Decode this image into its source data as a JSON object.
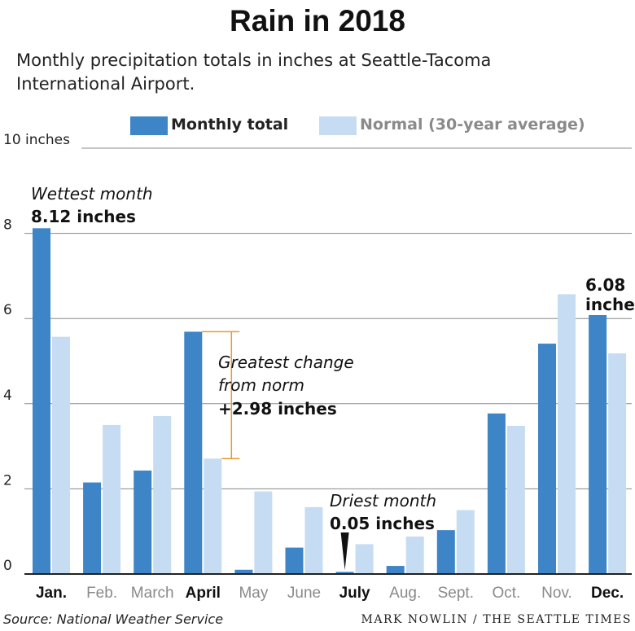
{
  "title": "Rain in 2018",
  "subtitle": "Monthly precipitation totals in inches at Seattle-Tacoma International Airport.",
  "colors": {
    "monthly": "#3d85c6",
    "normal": "#c6dcf2",
    "axis": "#222222",
    "grid": "#888888",
    "bracket": "#e69b2c",
    "muted": "#8a8a8a"
  },
  "legend": [
    {
      "label": "Monthly total",
      "color": "#3d85c6"
    },
    {
      "label": "Normal (30-year average)",
      "color": "#c6dcf2"
    }
  ],
  "chart_data": {
    "type": "bar",
    "categories": [
      "Jan.",
      "Feb.",
      "March",
      "April",
      "May",
      "June",
      "July",
      "Aug.",
      "Sept.",
      "Oct.",
      "Nov.",
      "Dec."
    ],
    "highlighted_categories": [
      "Jan.",
      "April",
      "July",
      "Dec."
    ],
    "series": [
      {
        "name": "Monthly total",
        "values": [
          8.12,
          2.15,
          2.43,
          5.69,
          0.1,
          0.62,
          0.05,
          0.19,
          1.03,
          3.77,
          5.41,
          6.08
        ]
      },
      {
        "name": "Normal (30-year average)",
        "values": [
          5.57,
          3.5,
          3.71,
          2.71,
          1.94,
          1.57,
          0.7,
          0.88,
          1.5,
          3.48,
          6.57,
          5.18
        ]
      }
    ],
    "ylim": [
      0,
      10
    ],
    "yticks": [
      "0",
      "2",
      "4",
      "6",
      "8",
      "10 inches"
    ],
    "grid": true,
    "legend_position": "top",
    "annotations": [
      {
        "category": "Jan.",
        "lines": [
          "Wettest month",
          "8.12 inches"
        ]
      },
      {
        "category": "April",
        "lines": [
          "Greatest change",
          "from norm",
          "+2.98 inches"
        ]
      },
      {
        "category": "July",
        "lines": [
          "Driest month",
          "0.05 inches"
        ]
      },
      {
        "category": "Dec.",
        "lines": [
          "6.08",
          "inches"
        ]
      }
    ]
  },
  "source": "Source: National Weather Service",
  "credit": "MARK NOWLIN / THE SEATTLE TIMES"
}
